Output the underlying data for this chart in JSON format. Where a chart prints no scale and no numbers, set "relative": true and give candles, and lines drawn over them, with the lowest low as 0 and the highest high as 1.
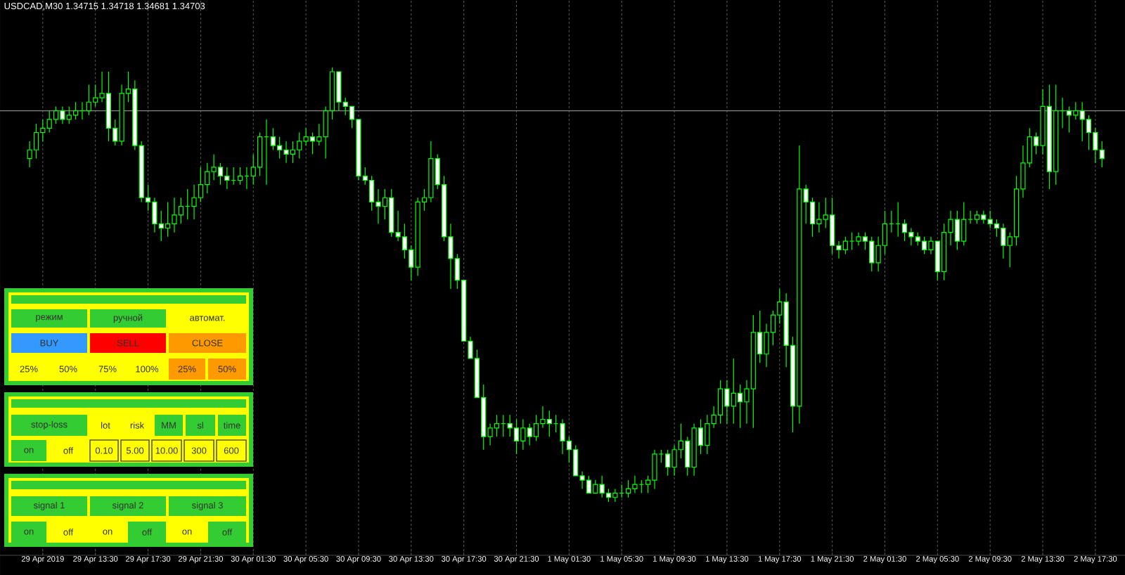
{
  "chart_data": {
    "type": "candlestick",
    "title": "USDCAD,M30  1.34715 1.34718 1.34681 1.34703",
    "relative": true,
    "color": "#00ff00",
    "grid": true,
    "categories": [
      null,
      null,
      "29 Apr 2019",
      null,
      null,
      null,
      null,
      null,
      null,
      null,
      "29 Apr 13:30",
      null,
      null,
      null,
      null,
      null,
      null,
      null,
      "29 Apr 17:30",
      null,
      null,
      null,
      null,
      null,
      null,
      null,
      "29 Apr 21:30",
      null,
      null,
      null,
      null,
      null,
      null,
      null,
      "30 Apr 01:30",
      null,
      null,
      null,
      null,
      null,
      null,
      null,
      "30 Apr 05:30",
      null,
      null,
      null,
      null,
      null,
      null,
      null,
      "30 Apr 09:30",
      null,
      null,
      null,
      null,
      null,
      null,
      null,
      "30 Apr 13:30",
      null,
      null,
      null,
      null,
      null,
      null,
      null,
      "30 Apr 17:30",
      null,
      null,
      null,
      null,
      null,
      null,
      null,
      "30 Apr 21:30",
      null,
      null,
      null,
      null,
      null,
      null,
      null,
      "1 May 01:30",
      null,
      null,
      null,
      null,
      null,
      null,
      null,
      "1 May 05:30",
      null,
      null,
      null,
      null,
      null,
      null,
      null,
      "1 May 09:30",
      null,
      null,
      null,
      null,
      null,
      null,
      null,
      "1 May 13:30",
      null,
      null,
      null,
      null,
      null,
      null,
      null,
      "1 May 17:30",
      null,
      null,
      null,
      null,
      null,
      null,
      null,
      "1 May 21:30",
      null,
      null,
      null,
      null,
      null,
      null,
      null,
      "2 May 01:30",
      null,
      null,
      null,
      null,
      null,
      null,
      null,
      "2 May 05:30",
      null,
      null,
      null,
      null,
      null,
      null,
      null,
      "2 May 09:30",
      null,
      null,
      null,
      null,
      null,
      null,
      null,
      "2 May 13:30",
      null,
      null,
      null,
      null,
      null,
      null,
      null,
      "2 May 17:30",
      null
    ],
    "ohlc": [
      [
        0.79,
        0.83,
        0.77,
        0.81
      ],
      [
        0.81,
        0.87,
        0.79,
        0.85
      ],
      [
        0.85,
        0.88,
        0.83,
        0.86
      ],
      [
        0.86,
        0.9,
        0.85,
        0.88
      ],
      [
        0.88,
        0.91,
        0.87,
        0.9
      ],
      [
        0.9,
        0.91,
        0.87,
        0.88
      ],
      [
        0.88,
        0.91,
        0.87,
        0.89
      ],
      [
        0.89,
        0.92,
        0.88,
        0.9
      ],
      [
        0.9,
        0.92,
        0.88,
        0.9
      ],
      [
        0.9,
        0.96,
        0.89,
        0.92
      ],
      [
        0.92,
        0.96,
        0.91,
        0.93
      ],
      [
        0.93,
        0.99,
        0.92,
        0.94
      ],
      [
        0.94,
        0.99,
        0.83,
        0.86
      ],
      [
        0.86,
        0.88,
        0.82,
        0.83
      ],
      [
        0.83,
        0.96,
        0.82,
        0.94
      ],
      [
        0.94,
        0.99,
        0.92,
        0.95
      ],
      [
        0.95,
        0.97,
        0.81,
        0.82
      ],
      [
        0.82,
        0.83,
        0.69,
        0.7
      ],
      [
        0.7,
        0.73,
        0.67,
        0.69
      ],
      [
        0.69,
        0.7,
        0.62,
        0.64
      ],
      [
        0.64,
        0.67,
        0.6,
        0.63
      ],
      [
        0.63,
        0.69,
        0.61,
        0.64
      ],
      [
        0.64,
        0.7,
        0.62,
        0.66
      ],
      [
        0.66,
        0.7,
        0.64,
        0.68
      ],
      [
        0.68,
        0.72,
        0.65,
        0.68
      ],
      [
        0.68,
        0.73,
        0.65,
        0.7
      ],
      [
        0.7,
        0.77,
        0.69,
        0.73
      ],
      [
        0.73,
        0.78,
        0.71,
        0.76
      ],
      [
        0.76,
        0.8,
        0.74,
        0.77
      ],
      [
        0.77,
        0.78,
        0.73,
        0.75
      ],
      [
        0.75,
        0.77,
        0.72,
        0.74
      ],
      [
        0.74,
        0.77,
        0.73,
        0.74
      ],
      [
        0.74,
        0.77,
        0.73,
        0.75
      ],
      [
        0.75,
        0.77,
        0.72,
        0.75
      ],
      [
        0.75,
        0.8,
        0.73,
        0.77
      ],
      [
        0.77,
        0.85,
        0.75,
        0.84
      ],
      [
        0.84,
        0.88,
        0.73,
        0.84
      ],
      [
        0.84,
        0.86,
        0.81,
        0.82
      ],
      [
        0.82,
        0.84,
        0.79,
        0.81
      ],
      [
        0.81,
        0.83,
        0.78,
        0.8
      ],
      [
        0.8,
        0.83,
        0.78,
        0.81
      ],
      [
        0.81,
        0.85,
        0.79,
        0.83
      ],
      [
        0.83,
        0.86,
        0.82,
        0.84
      ],
      [
        0.84,
        0.85,
        0.8,
        0.83
      ],
      [
        0.83,
        0.87,
        0.82,
        0.84
      ],
      [
        0.84,
        0.91,
        0.79,
        0.9
      ],
      [
        0.9,
        1,
        0.88,
        0.99
      ],
      [
        0.99,
        0.99,
        0.9,
        0.92
      ],
      [
        0.92,
        0.93,
        0.89,
        0.91
      ],
      [
        0.91,
        0.91,
        0.86,
        0.88
      ],
      [
        0.88,
        0.88,
        0.74,
        0.75
      ],
      [
        0.75,
        0.77,
        0.73,
        0.74
      ],
      [
        0.74,
        0.75,
        0.67,
        0.69
      ],
      [
        0.69,
        0.72,
        0.64,
        0.68
      ],
      [
        0.68,
        0.72,
        0.65,
        0.7
      ],
      [
        0.7,
        0.72,
        0.61,
        0.62
      ],
      [
        0.62,
        0.67,
        0.6,
        0.61
      ],
      [
        0.61,
        0.64,
        0.56,
        0.58
      ],
      [
        0.58,
        0.59,
        0.51,
        0.54
      ],
      [
        0.54,
        0.7,
        0.52,
        0.69
      ],
      [
        0.69,
        0.72,
        0.67,
        0.7
      ],
      [
        0.7,
        0.83,
        0.69,
        0.79
      ],
      [
        0.79,
        0.8,
        0.72,
        0.73
      ],
      [
        0.73,
        0.75,
        0.6,
        0.61
      ],
      [
        0.61,
        0.64,
        0.49,
        0.56
      ],
      [
        0.56,
        0.57,
        0.49,
        0.51
      ],
      [
        0.51,
        0.51,
        0.37,
        0.37
      ],
      [
        0.37,
        0.38,
        0.33,
        0.33
      ],
      [
        0.33,
        0.35,
        0.24,
        0.24
      ],
      [
        0.24,
        0.27,
        0.12,
        0.15
      ],
      [
        0.15,
        0.18,
        0.13,
        0.17
      ],
      [
        0.17,
        0.2,
        0.15,
        0.18
      ],
      [
        0.18,
        0.2,
        0.15,
        0.18
      ],
      [
        0.18,
        0.2,
        0.15,
        0.17
      ],
      [
        0.17,
        0.19,
        0.11,
        0.14
      ],
      [
        0.14,
        0.19,
        0.12,
        0.17
      ],
      [
        0.17,
        0.18,
        0.13,
        0.15
      ],
      [
        0.15,
        0.2,
        0.14,
        0.18
      ],
      [
        0.18,
        0.22,
        0.17,
        0.19
      ],
      [
        0.19,
        0.21,
        0.15,
        0.18
      ],
      [
        0.18,
        0.2,
        0.16,
        0.18
      ],
      [
        0.18,
        0.19,
        0.11,
        0.14
      ],
      [
        0.14,
        0.15,
        0.09,
        0.12
      ],
      [
        0.12,
        0.13,
        0.06,
        0.06
      ],
      [
        0.06,
        0.07,
        0.03,
        0.05
      ],
      [
        0.05,
        0.06,
        0.02,
        0.02
      ],
      [
        0.02,
        0.05,
        0.02,
        0.04
      ],
      [
        0.04,
        0.06,
        0.01,
        0.02
      ],
      [
        0.02,
        0.03,
        0,
        0.01
      ],
      [
        0.01,
        0.03,
        0,
        0.02
      ],
      [
        0.02,
        0.04,
        0.01,
        0.02
      ],
      [
        0.02,
        0.05,
        0.01,
        0.03
      ],
      [
        0.03,
        0.06,
        0.02,
        0.04
      ],
      [
        0.04,
        0.05,
        0.02,
        0.04
      ],
      [
        0.04,
        0.06,
        0.02,
        0.05
      ],
      [
        0.05,
        0.12,
        0.03,
        0.11
      ],
      [
        0.11,
        0.12,
        0.09,
        0.11
      ],
      [
        0.11,
        0.12,
        0.06,
        0.08
      ],
      [
        0.08,
        0.13,
        0.06,
        0.12
      ],
      [
        0.12,
        0.18,
        0.1,
        0.14
      ],
      [
        0.14,
        0.15,
        0.06,
        0.08
      ],
      [
        0.08,
        0.18,
        0.06,
        0.17
      ],
      [
        0.17,
        0.19,
        0.11,
        0.13
      ],
      [
        0.13,
        0.2,
        0.11,
        0.18
      ],
      [
        0.18,
        0.22,
        0.17,
        0.2
      ],
      [
        0.2,
        0.28,
        0.18,
        0.26
      ],
      [
        0.26,
        0.28,
        0.18,
        0.22
      ],
      [
        0.22,
        0.33,
        0.18,
        0.25
      ],
      [
        0.25,
        0.27,
        0.17,
        0.23
      ],
      [
        0.23,
        0.28,
        0.18,
        0.26
      ],
      [
        0.26,
        0.43,
        0.17,
        0.39
      ],
      [
        0.39,
        0.44,
        0.32,
        0.34
      ],
      [
        0.34,
        0.41,
        0.31,
        0.39
      ],
      [
        0.39,
        0.44,
        0.36,
        0.43
      ],
      [
        0.43,
        0.49,
        0.41,
        0.46
      ],
      [
        0.46,
        0.48,
        0.31,
        0.36
      ],
      [
        0.36,
        0.38,
        0.16,
        0.22
      ],
      [
        0.22,
        0.82,
        0.18,
        0.72
      ],
      [
        0.72,
        0.73,
        0.64,
        0.69
      ],
      [
        0.69,
        0.7,
        0.61,
        0.64
      ],
      [
        0.64,
        0.69,
        0.62,
        0.65
      ],
      [
        0.65,
        0.7,
        0.63,
        0.66
      ],
      [
        0.66,
        0.7,
        0.57,
        0.59
      ],
      [
        0.59,
        0.6,
        0.56,
        0.58
      ],
      [
        0.58,
        0.61,
        0.57,
        0.6
      ],
      [
        0.6,
        0.62,
        0.58,
        0.6
      ],
      [
        0.6,
        0.62,
        0.59,
        0.61
      ],
      [
        0.61,
        0.62,
        0.58,
        0.6
      ],
      [
        0.6,
        0.61,
        0.53,
        0.55
      ],
      [
        0.55,
        0.61,
        0.53,
        0.59
      ],
      [
        0.59,
        0.67,
        0.57,
        0.64
      ],
      [
        0.64,
        0.67,
        0.62,
        0.64
      ],
      [
        0.64,
        0.69,
        0.61,
        0.64
      ],
      [
        0.64,
        0.65,
        0.6,
        0.62
      ],
      [
        0.62,
        0.63,
        0.59,
        0.61
      ],
      [
        0.61,
        0.62,
        0.59,
        0.6
      ],
      [
        0.6,
        0.61,
        0.57,
        0.58
      ],
      [
        0.58,
        0.61,
        0.57,
        0.6
      ],
      [
        0.6,
        0.6,
        0.51,
        0.53
      ],
      [
        0.53,
        0.64,
        0.51,
        0.62
      ],
      [
        0.62,
        0.67,
        0.59,
        0.65
      ],
      [
        0.65,
        0.67,
        0.58,
        0.6
      ],
      [
        0.6,
        0.69,
        0.59,
        0.65
      ],
      [
        0.65,
        0.67,
        0.64,
        0.65
      ],
      [
        0.65,
        0.67,
        0.64,
        0.66
      ],
      [
        0.66,
        0.67,
        0.64,
        0.65
      ],
      [
        0.65,
        0.67,
        0.63,
        0.64
      ],
      [
        0.64,
        0.65,
        0.61,
        0.63
      ],
      [
        0.63,
        0.64,
        0.56,
        0.59
      ],
      [
        0.59,
        0.62,
        0.54,
        0.61
      ],
      [
        0.61,
        0.75,
        0.59,
        0.72
      ],
      [
        0.72,
        0.82,
        0.7,
        0.78
      ],
      [
        0.78,
        0.86,
        0.77,
        0.84
      ],
      [
        0.84,
        0.85,
        0.8,
        0.82
      ],
      [
        0.82,
        0.95,
        0.8,
        0.91
      ],
      [
        0.91,
        0.96,
        0.72,
        0.76
      ],
      [
        0.76,
        0.96,
        0.73,
        0.9
      ],
      [
        0.9,
        0.93,
        0.86,
        0.9
      ],
      [
        0.9,
        0.91,
        0.85,
        0.89
      ],
      [
        0.89,
        0.92,
        0.88,
        0.9
      ],
      [
        0.9,
        0.92,
        0.83,
        0.88
      ],
      [
        0.88,
        0.89,
        0.81,
        0.85
      ],
      [
        0.85,
        0.86,
        0.78,
        0.81
      ],
      [
        0.81,
        0.83,
        0.77,
        0.79
      ]
    ],
    "ref_lines": [
      {
        "axis": "y",
        "value": 0.9,
        "color": "#808080"
      }
    ],
    "annotations": [
      "режим",
      "ручной",
      "автомат.",
      "BUY",
      "SELL",
      "CLOSE",
      "25%",
      "50%",
      "75%",
      "100%",
      "25%",
      "50%",
      "stop-loss",
      "lot",
      "risk",
      "MM",
      "sl",
      "time",
      "on",
      "off",
      "0.10",
      "5.00",
      "10.00",
      "300",
      "600",
      "signal 1",
      "signal 2",
      "signal 3",
      "on",
      "off",
      "on",
      "off",
      "on",
      "off"
    ]
  }
}
